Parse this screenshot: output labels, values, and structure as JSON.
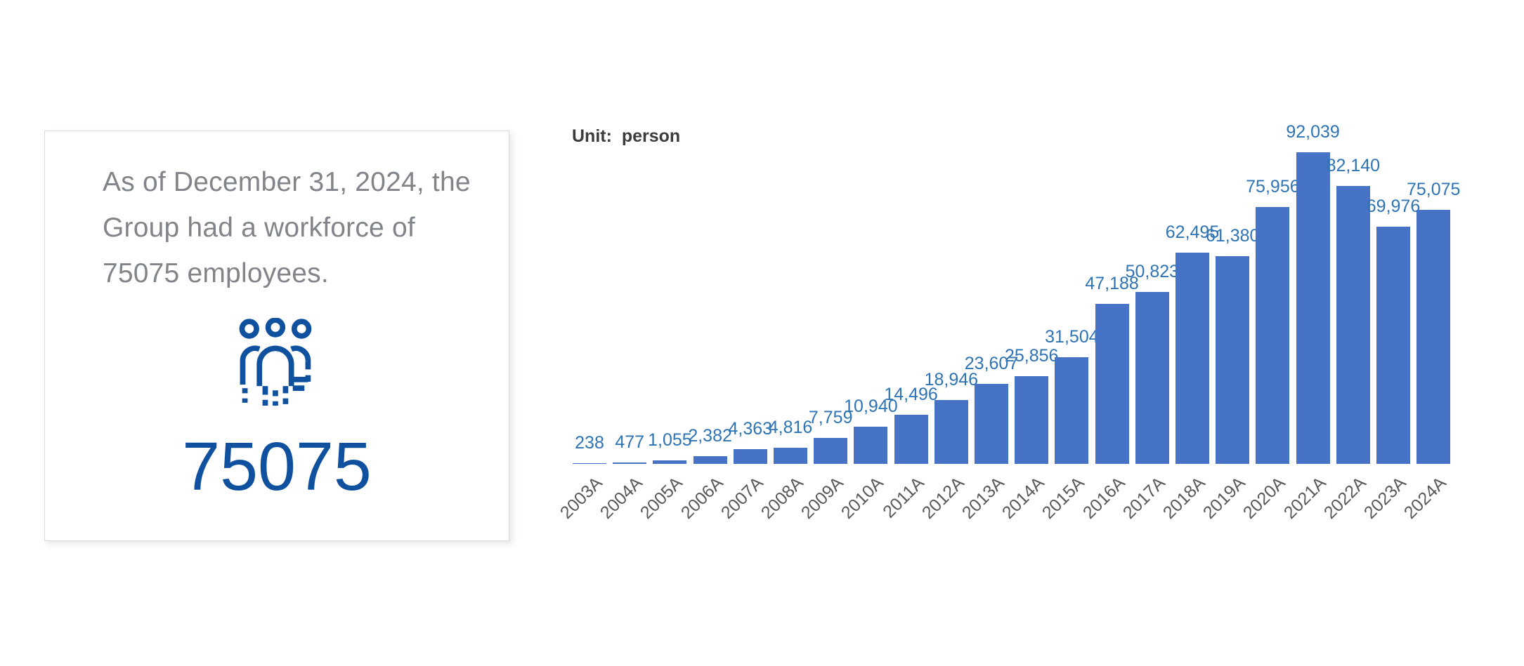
{
  "card": {
    "lines": [
      "As of December 31, 2024, the",
      "Group had a workforce of",
      "75075 employees."
    ],
    "big_number": "75075",
    "accent_color": "#10519f",
    "text_color": "#818589"
  },
  "chart": {
    "unit_label": "Unit:  person"
  },
  "chart_data": {
    "type": "bar",
    "title": "",
    "xlabel": "",
    "ylabel": "Unit: person",
    "categories": [
      "2003A",
      "2004A",
      "2005A",
      "2006A",
      "2007A",
      "2008A",
      "2009A",
      "2010A",
      "2011A",
      "2012A",
      "2013A",
      "2014A",
      "2015A",
      "2016A",
      "2017A",
      "2018A",
      "2019A",
      "2020A",
      "2021A",
      "2022A",
      "2023A",
      "2024A"
    ],
    "values": [
      238,
      477,
      1055,
      2382,
      4363,
      4816,
      7759,
      10940,
      14496,
      18946,
      23607,
      25856,
      31504,
      47188,
      50823,
      62495,
      61380,
      75956,
      92039,
      82140,
      69976,
      75075
    ],
    "value_labels": [
      "238",
      "477",
      "1,055",
      "2,382",
      "4,363",
      "4,816",
      "7,759",
      "10,940",
      "14,496",
      "18,946",
      "23,607",
      "25,856",
      "31,504",
      "47,188",
      "50,823",
      "62,495",
      "61,380",
      "75,956",
      "92,039",
      "82,140",
      "69,976",
      "75,075"
    ],
    "ylim": [
      0,
      92039
    ],
    "grid": false,
    "legend": "none",
    "bar_color": "#4673c6",
    "value_label_color": "#2e74b5",
    "tick_label_color": "#595959"
  }
}
